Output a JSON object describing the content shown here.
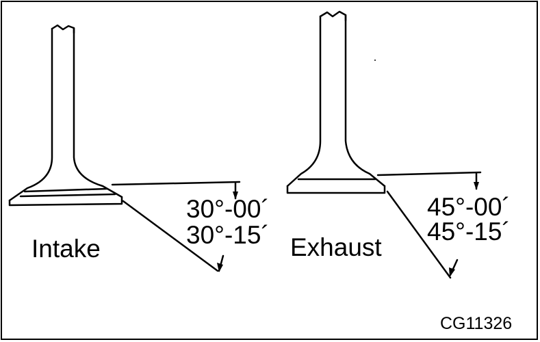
{
  "intake": {
    "label": "Intake",
    "angle_min": "30°-00´",
    "angle_max": "30°-15´"
  },
  "exhaust": {
    "label": "Exhaust",
    "angle_min": "45°-00´",
    "angle_max": "45°-15´"
  },
  "figure_code": "CG11326",
  "colors": {
    "line": "#000000",
    "background": "#ffffff"
  }
}
